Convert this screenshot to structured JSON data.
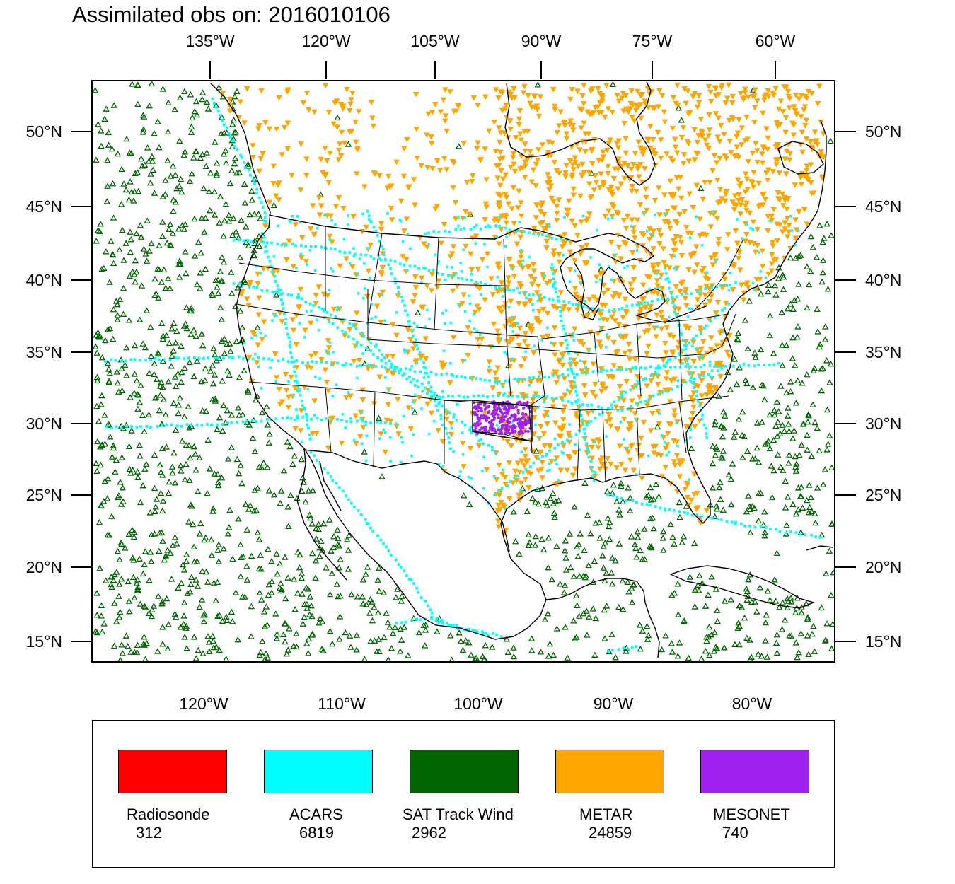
{
  "title": "Assimilated obs on: 2016010106",
  "map": {
    "top_axis_labels": [
      "135°W",
      "120°W",
      "105°W",
      "90°W",
      "75°W",
      "60°W"
    ],
    "bottom_axis_labels": [
      "120°W",
      "110°W",
      "100°W",
      "90°W",
      "80°W"
    ],
    "left_axis_labels": [
      "50°N",
      "45°N",
      "40°N",
      "35°N",
      "30°N",
      "25°N",
      "20°N",
      "15°N"
    ],
    "right_axis_labels": [
      "50°N",
      "45°N",
      "40°N",
      "35°N",
      "30°N",
      "25°N",
      "20°N",
      "15°N"
    ],
    "lon_range": [
      "128°W",
      "74°W"
    ],
    "lat_range": [
      "14°N",
      "53°N"
    ]
  },
  "legend": {
    "entries": [
      {
        "name": "Radiosonde",
        "count": "312",
        "color": "#ff0000",
        "marker": "none"
      },
      {
        "name": "ACARS",
        "count": "6819",
        "color": "#00ffff",
        "marker": "square-dot"
      },
      {
        "name": "SAT Track Wind",
        "count": "2962",
        "color": "#006400",
        "marker": "triangle-up"
      },
      {
        "name": "METAR",
        "count": "24859",
        "color": "#ffa500",
        "marker": "triangle-down"
      },
      {
        "name": "MESONET",
        "count": "740",
        "color": "#a020f0",
        "marker": "dot"
      }
    ]
  }
}
